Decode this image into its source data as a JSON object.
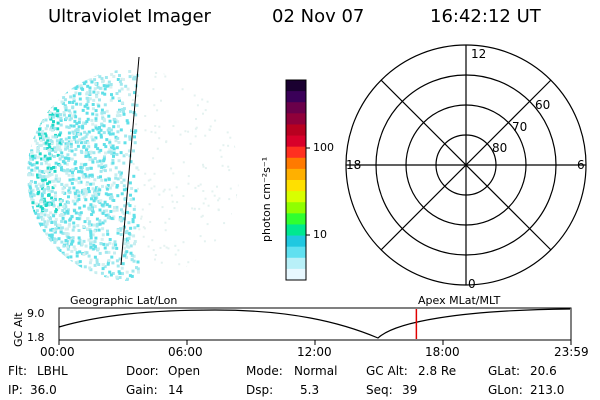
{
  "header": {
    "instrument": "Ultraviolet Imager",
    "date": "02 Nov 07",
    "time": "16:42:12 UT"
  },
  "colorbar": {
    "unit_label": "photon cm⁻²s⁻¹",
    "ticks": [
      "100",
      "10"
    ],
    "colors": [
      "#1a0030",
      "#3a0058",
      "#6a004a",
      "#90003a",
      "#b80020",
      "#d8002a",
      "#ff3020",
      "#ff7a00",
      "#ffb000",
      "#ffe000",
      "#d8ff00",
      "#90ff00",
      "#30ff30",
      "#00e890",
      "#20c8e0",
      "#60e0f0",
      "#b8f0f8",
      "#e8f8ff"
    ]
  },
  "polar_plot": {
    "mlt_labels": [
      "12",
      "18",
      "6",
      "0"
    ],
    "lat_labels": [
      "60",
      "70",
      "80"
    ]
  },
  "timeline": {
    "y_axis_label": "GC Alt",
    "y_max": "9.0",
    "y_min": "1.8",
    "left_label": "Geographic Lat/Lon",
    "right_label": "Apex  MLat/MLT",
    "x_ticks": [
      "00:00",
      "06:00",
      "12:00",
      "18:00",
      "23:59"
    ],
    "current_time_fraction": 0.698
  },
  "status": {
    "filter_label": "Flt:",
    "filter_value": "LBHL",
    "ip_label": "IP:",
    "ip_value": "36.0",
    "door_label": "Door:",
    "door_value": "Open",
    "gain_label": "Gain:",
    "gain_value": "14",
    "mode_label": "Mode:",
    "mode_value": "Normal",
    "dsp_label": "Dsp:",
    "dsp_value": "5.3",
    "gcalt_label": "GC Alt:",
    "gcalt_value": "2.8 Re",
    "seq_label": "Seq:",
    "seq_value": "39",
    "glat_label": "GLat:",
    "glat_value": "20.6",
    "glon_label": "GLon:",
    "glon_value": "213.0"
  }
}
